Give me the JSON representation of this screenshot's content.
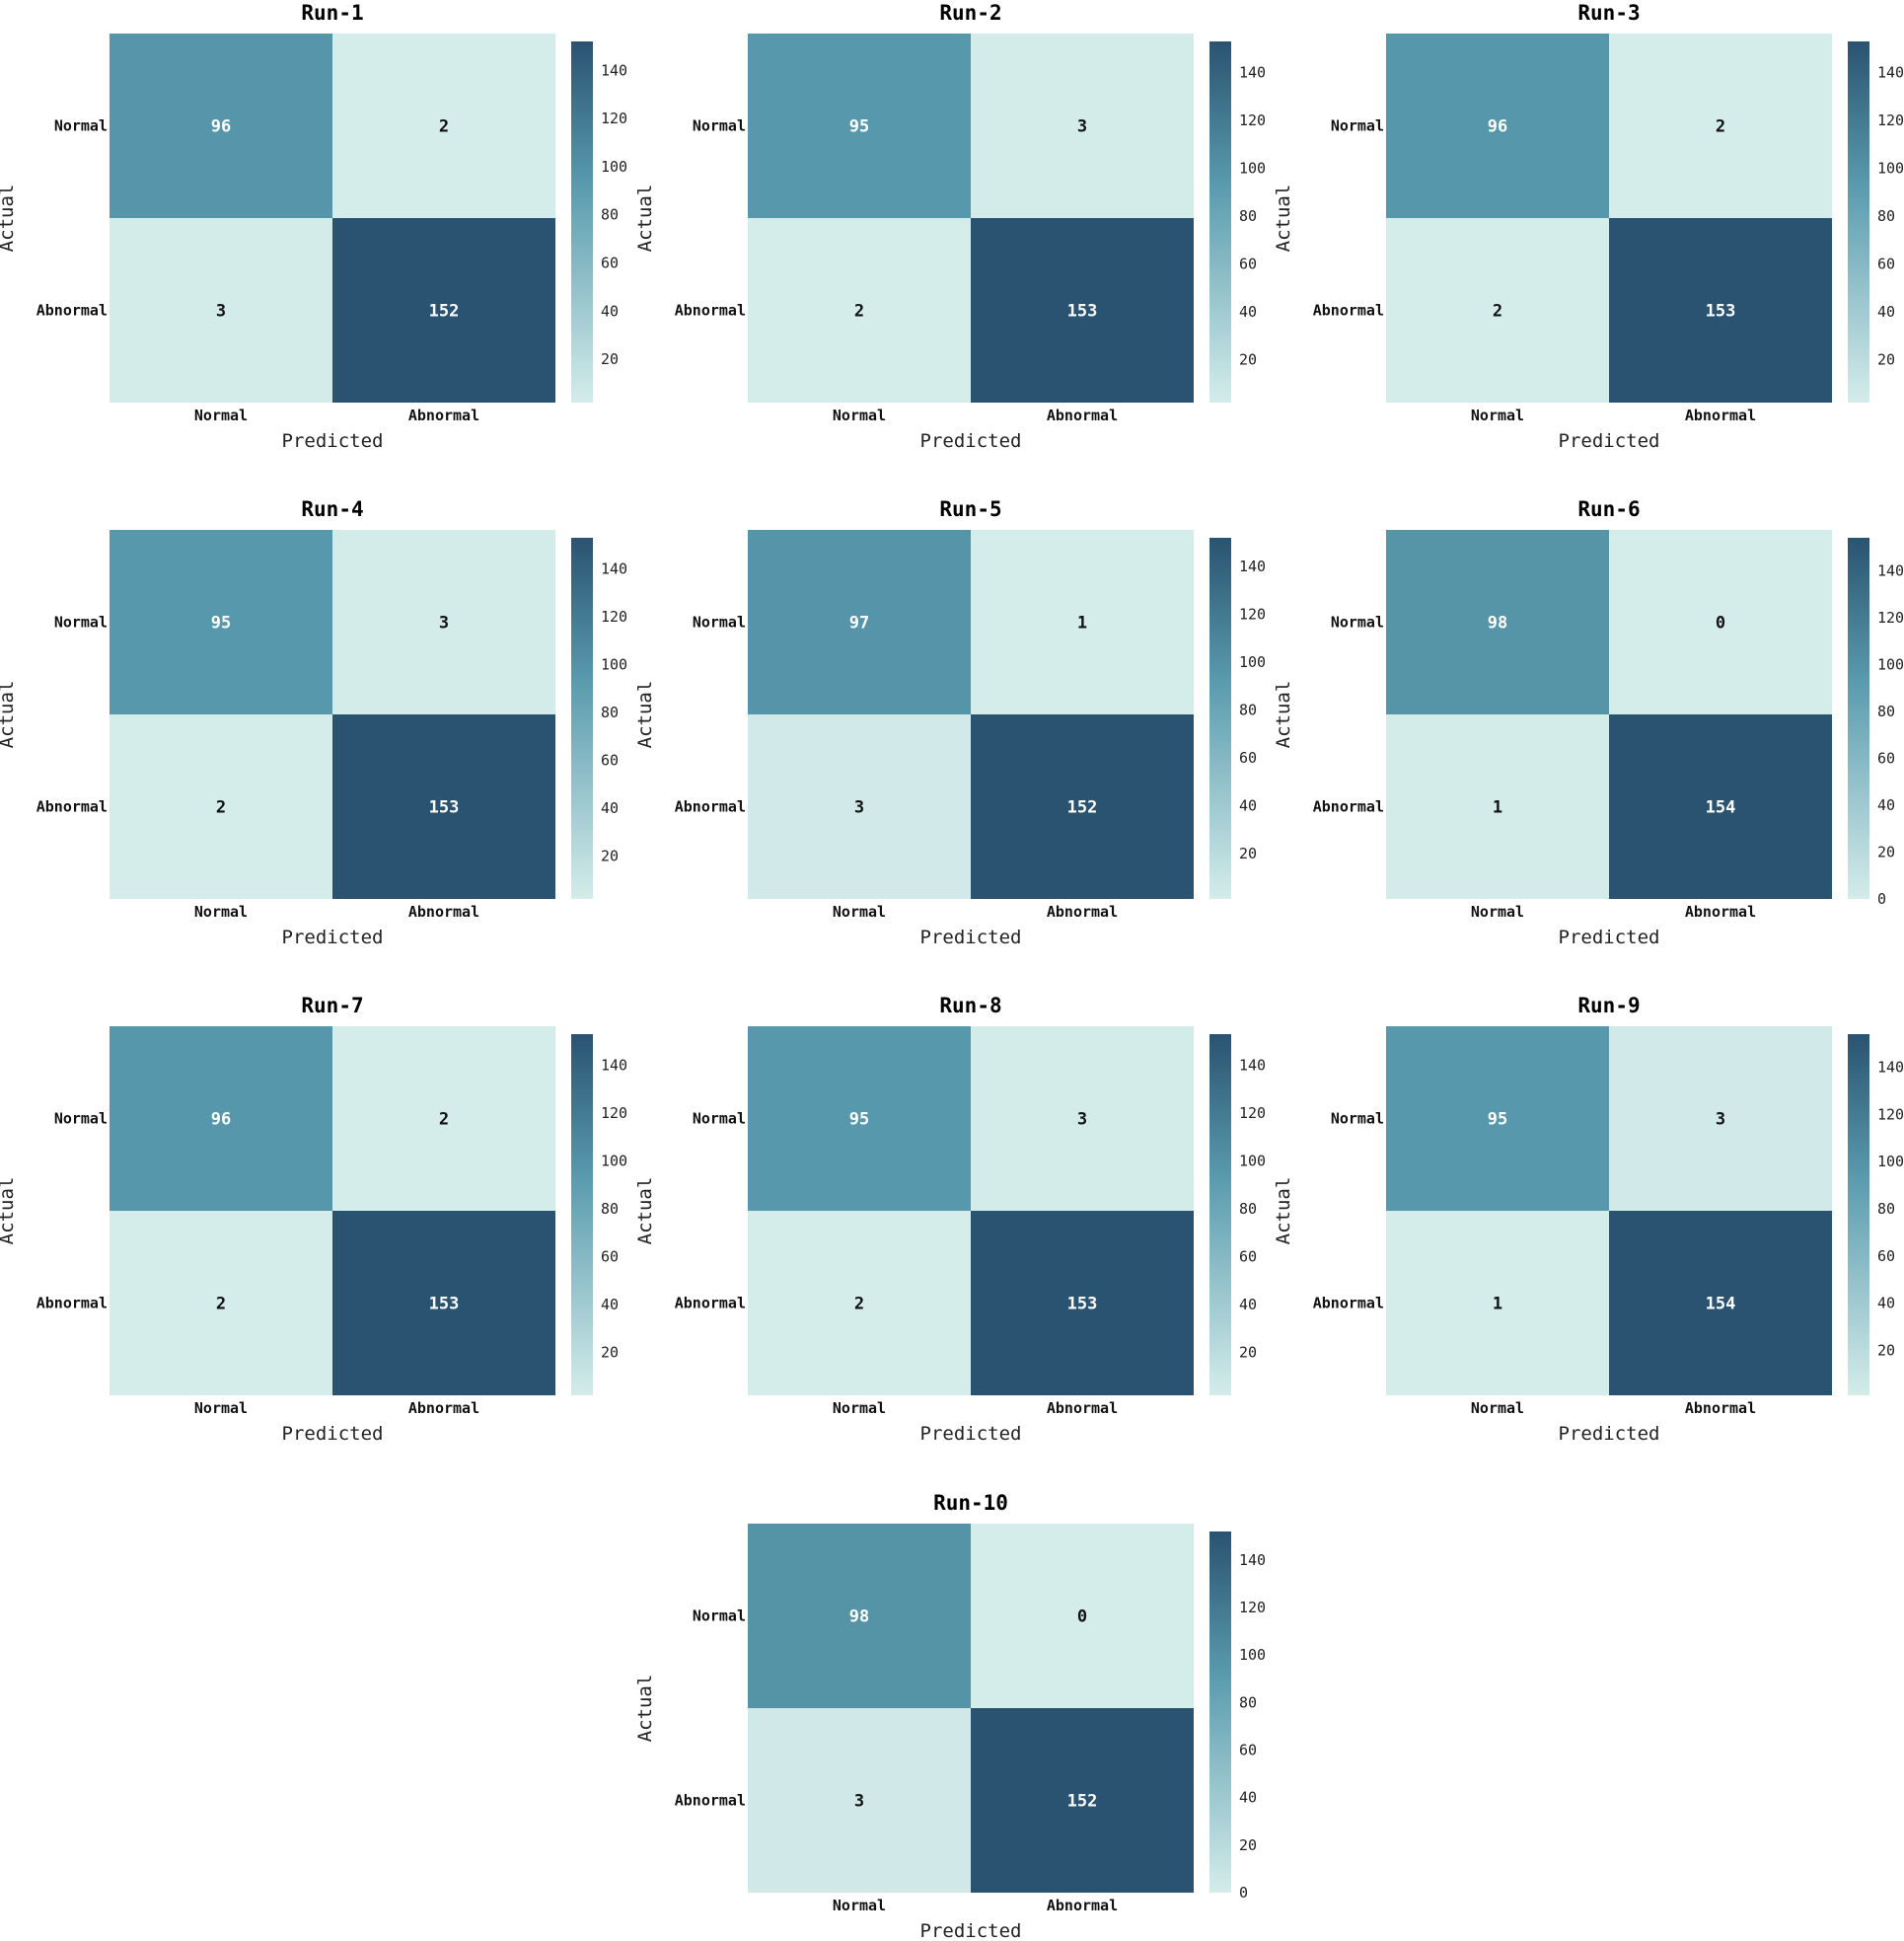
{
  "chart_data": [
    {
      "type": "heatmap",
      "title": "Run-1",
      "xlabel": "Predicted",
      "ylabel": "Actual",
      "x_categories": [
        "Normal",
        "Abnormal"
      ],
      "y_categories": [
        "Normal",
        "Abnormal"
      ],
      "matrix": [
        [
          96,
          2
        ],
        [
          3,
          152
        ]
      ],
      "colorbar": {
        "range": [
          2,
          152
        ],
        "ticks": [
          20,
          40,
          60,
          80,
          100,
          120,
          140
        ]
      }
    },
    {
      "type": "heatmap",
      "title": "Run-2",
      "xlabel": "Predicted",
      "ylabel": "Actual",
      "x_categories": [
        "Normal",
        "Abnormal"
      ],
      "y_categories": [
        "Normal",
        "Abnormal"
      ],
      "matrix": [
        [
          95,
          3
        ],
        [
          2,
          153
        ]
      ],
      "colorbar": {
        "range": [
          2,
          153
        ],
        "ticks": [
          20,
          40,
          60,
          80,
          100,
          120,
          140
        ]
      }
    },
    {
      "type": "heatmap",
      "title": "Run-3",
      "xlabel": "Predicted",
      "ylabel": "Actual",
      "x_categories": [
        "Normal",
        "Abnormal"
      ],
      "y_categories": [
        "Normal",
        "Abnormal"
      ],
      "matrix": [
        [
          96,
          2
        ],
        [
          2,
          153
        ]
      ],
      "colorbar": {
        "range": [
          2,
          153
        ],
        "ticks": [
          20,
          40,
          60,
          80,
          100,
          120,
          140
        ]
      }
    },
    {
      "type": "heatmap",
      "title": "Run-4",
      "xlabel": "Predicted",
      "ylabel": "Actual",
      "x_categories": [
        "Normal",
        "Abnormal"
      ],
      "y_categories": [
        "Normal",
        "Abnormal"
      ],
      "matrix": [
        [
          95,
          3
        ],
        [
          2,
          153
        ]
      ],
      "colorbar": {
        "range": [
          2,
          153
        ],
        "ticks": [
          20,
          40,
          60,
          80,
          100,
          120,
          140
        ]
      }
    },
    {
      "type": "heatmap",
      "title": "Run-5",
      "xlabel": "Predicted",
      "ylabel": "Actual",
      "x_categories": [
        "Normal",
        "Abnormal"
      ],
      "y_categories": [
        "Normal",
        "Abnormal"
      ],
      "matrix": [
        [
          97,
          1
        ],
        [
          3,
          152
        ]
      ],
      "colorbar": {
        "range": [
          1,
          152
        ],
        "ticks": [
          20,
          40,
          60,
          80,
          100,
          120,
          140
        ]
      }
    },
    {
      "type": "heatmap",
      "title": "Run-6",
      "xlabel": "Predicted",
      "ylabel": "Actual",
      "x_categories": [
        "Normal",
        "Abnormal"
      ],
      "y_categories": [
        "Normal",
        "Abnormal"
      ],
      "matrix": [
        [
          98,
          0
        ],
        [
          1,
          154
        ]
      ],
      "colorbar": {
        "range": [
          0,
          154
        ],
        "ticks": [
          0,
          20,
          40,
          60,
          80,
          100,
          120,
          140
        ]
      }
    },
    {
      "type": "heatmap",
      "title": "Run-7",
      "xlabel": "Predicted",
      "ylabel": "Actual",
      "x_categories": [
        "Normal",
        "Abnormal"
      ],
      "y_categories": [
        "Normal",
        "Abnormal"
      ],
      "matrix": [
        [
          96,
          2
        ],
        [
          2,
          153
        ]
      ],
      "colorbar": {
        "range": [
          2,
          153
        ],
        "ticks": [
          20,
          40,
          60,
          80,
          100,
          120,
          140
        ]
      }
    },
    {
      "type": "heatmap",
      "title": "Run-8",
      "xlabel": "Predicted",
      "ylabel": "Actual",
      "x_categories": [
        "Normal",
        "Abnormal"
      ],
      "y_categories": [
        "Normal",
        "Abnormal"
      ],
      "matrix": [
        [
          95,
          3
        ],
        [
          2,
          153
        ]
      ],
      "colorbar": {
        "range": [
          2,
          153
        ],
        "ticks": [
          20,
          40,
          60,
          80,
          100,
          120,
          140
        ]
      }
    },
    {
      "type": "heatmap",
      "title": "Run-9",
      "xlabel": "Predicted",
      "ylabel": "Actual",
      "x_categories": [
        "Normal",
        "Abnormal"
      ],
      "y_categories": [
        "Normal",
        "Abnormal"
      ],
      "matrix": [
        [
          95,
          3
        ],
        [
          1,
          154
        ]
      ],
      "colorbar": {
        "range": [
          1,
          154
        ],
        "ticks": [
          20,
          40,
          60,
          80,
          100,
          120,
          140
        ]
      }
    },
    {
      "type": "heatmap",
      "title": "Run-10",
      "xlabel": "Predicted",
      "ylabel": "Actual",
      "x_categories": [
        "Normal",
        "Abnormal"
      ],
      "y_categories": [
        "Normal",
        "Abnormal"
      ],
      "matrix": [
        [
          98,
          0
        ],
        [
          3,
          152
        ]
      ],
      "colorbar": {
        "range": [
          0,
          152
        ],
        "ticks": [
          0,
          20,
          40,
          60,
          80,
          100,
          120,
          140
        ]
      }
    }
  ],
  "colors": {
    "low": "#d4ecea",
    "mid": "#5a9bae",
    "high": "#2a5371"
  }
}
